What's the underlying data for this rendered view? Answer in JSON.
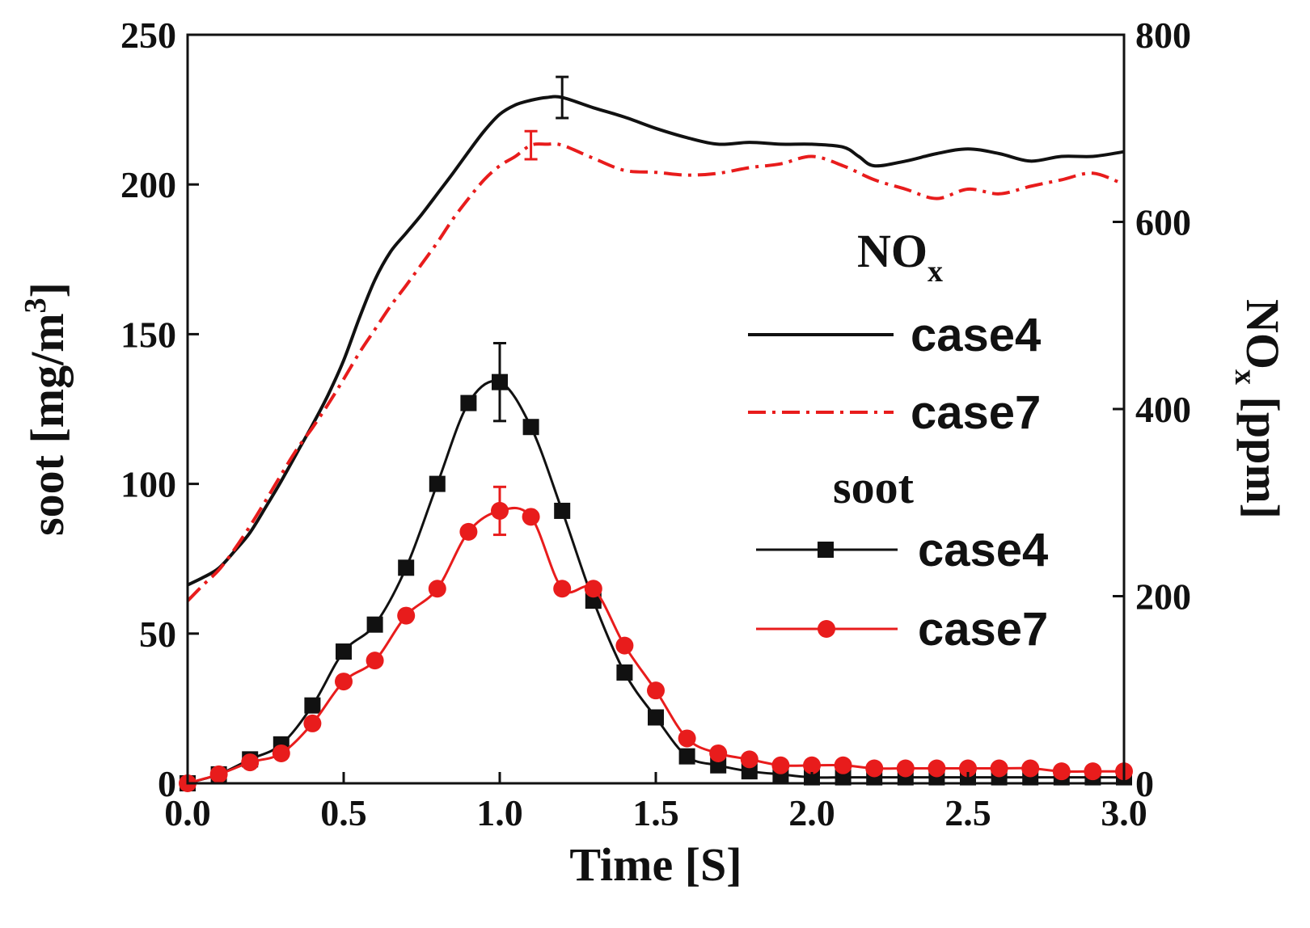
{
  "chart_data": {
    "type": "line",
    "title": "",
    "xlabel": "Time [S]",
    "ylabel_left": {
      "text": "soot [mg/m",
      "sup": "3",
      "suffix": "]"
    },
    "ylabel_right": {
      "text": "NO",
      "sub": "x",
      "suffix": " [ppm]"
    },
    "xlim": [
      0,
      3.0
    ],
    "ylim_left": [
      0,
      250
    ],
    "ylim_right": [
      0,
      800
    ],
    "x_ticks": [
      "0.0",
      "0.5",
      "1.0",
      "1.5",
      "2.0",
      "2.5",
      "3.0"
    ],
    "y_left_ticks": [
      "0",
      "50",
      "100",
      "150",
      "200",
      "250"
    ],
    "y_right_ticks": [
      "0",
      "200",
      "400",
      "600",
      "800"
    ],
    "legend": {
      "placement": "right",
      "group1": {
        "title": "NO",
        "title_sub": "x",
        "entries": [
          "case4",
          "case7"
        ]
      },
      "group2": {
        "title": "soot",
        "entries": [
          "case4",
          "case7"
        ]
      }
    },
    "series": [
      {
        "name": "NOx case4",
        "axis": "right",
        "color": "#111111",
        "style": "solid",
        "x": [
          0,
          0.05,
          0.1,
          0.15,
          0.2,
          0.25,
          0.3,
          0.35,
          0.4,
          0.45,
          0.5,
          0.55,
          0.6,
          0.65,
          0.7,
          0.75,
          0.8,
          0.85,
          0.9,
          0.95,
          1.0,
          1.05,
          1.1,
          1.15,
          1.2,
          1.3,
          1.4,
          1.5,
          1.6,
          1.7,
          1.8,
          1.9,
          2.0,
          2.1,
          2.15,
          2.2,
          2.3,
          2.4,
          2.5,
          2.6,
          2.7,
          2.8,
          2.9,
          3.0
        ],
        "values": [
          212,
          220,
          230,
          248,
          268,
          295,
          323,
          353,
          383,
          415,
          452,
          497,
          538,
          568,
          588,
          608,
          630,
          652,
          675,
          697,
          715,
          725,
          730,
          733,
          733,
          722,
          712,
          700,
          690,
          683,
          685,
          683,
          683,
          680,
          670,
          660,
          665,
          673,
          678,
          673,
          665,
          670,
          670,
          675
        ],
        "error_bars": [
          {
            "x": 1.2,
            "y": 733,
            "err": 22
          }
        ]
      },
      {
        "name": "NOx case7",
        "axis": "right",
        "color": "#e81c1c",
        "style": "dashdot",
        "x": [
          0,
          0.05,
          0.1,
          0.15,
          0.2,
          0.25,
          0.3,
          0.35,
          0.4,
          0.45,
          0.5,
          0.55,
          0.6,
          0.65,
          0.7,
          0.75,
          0.8,
          0.85,
          0.9,
          0.95,
          1.0,
          1.05,
          1.1,
          1.15,
          1.2,
          1.3,
          1.4,
          1.5,
          1.6,
          1.7,
          1.8,
          1.9,
          2.0,
          2.1,
          2.2,
          2.3,
          2.4,
          2.5,
          2.6,
          2.7,
          2.8,
          2.9,
          3.0
        ],
        "values": [
          195,
          212,
          228,
          250,
          275,
          302,
          330,
          357,
          380,
          405,
          432,
          460,
          485,
          510,
          532,
          555,
          578,
          603,
          625,
          645,
          660,
          670,
          682,
          683,
          682,
          668,
          655,
          653,
          650,
          652,
          658,
          662,
          670,
          660,
          645,
          635,
          625,
          635,
          630,
          638,
          645,
          652,
          640
        ],
        "error_bars": [
          {
            "x": 1.1,
            "y": 682,
            "err": 15
          }
        ]
      },
      {
        "name": "soot case4",
        "axis": "left",
        "color": "#111111",
        "style": "solid",
        "marker": "square",
        "x": [
          0.0,
          0.1,
          0.2,
          0.3,
          0.4,
          0.5,
          0.6,
          0.7,
          0.8,
          0.9,
          1.0,
          1.1,
          1.2,
          1.3,
          1.4,
          1.5,
          1.6,
          1.7,
          1.8,
          1.9,
          2.0,
          2.1,
          2.2,
          2.3,
          2.4,
          2.5,
          2.6,
          2.7,
          2.8,
          2.9,
          3.0
        ],
        "values": [
          0,
          3,
          8,
          13,
          26,
          44,
          53,
          72,
          100,
          127,
          134,
          119,
          91,
          61,
          37,
          22,
          9,
          6,
          4,
          3,
          2,
          2,
          2,
          2,
          2,
          2,
          2,
          2,
          2,
          2,
          2
        ],
        "error_bars": [
          {
            "x": 1.0,
            "y": 134,
            "err": 13
          }
        ]
      },
      {
        "name": "soot case7",
        "axis": "left",
        "color": "#e81c1c",
        "style": "solid",
        "marker": "circle",
        "x": [
          0.0,
          0.1,
          0.2,
          0.3,
          0.4,
          0.5,
          0.6,
          0.7,
          0.8,
          0.9,
          1.0,
          1.1,
          1.2,
          1.3,
          1.4,
          1.5,
          1.6,
          1.7,
          1.8,
          1.9,
          2.0,
          2.1,
          2.2,
          2.3,
          2.4,
          2.5,
          2.6,
          2.7,
          2.8,
          2.9,
          3.0
        ],
        "values": [
          0,
          3,
          7,
          10,
          20,
          34,
          41,
          56,
          65,
          84,
          91,
          89,
          65,
          65,
          46,
          31,
          15,
          10,
          8,
          6,
          6,
          6,
          5,
          5,
          5,
          5,
          5,
          5,
          4,
          4,
          4
        ],
        "error_bars": [
          {
            "x": 1.0,
            "y": 91,
            "err": 8
          }
        ]
      }
    ]
  }
}
